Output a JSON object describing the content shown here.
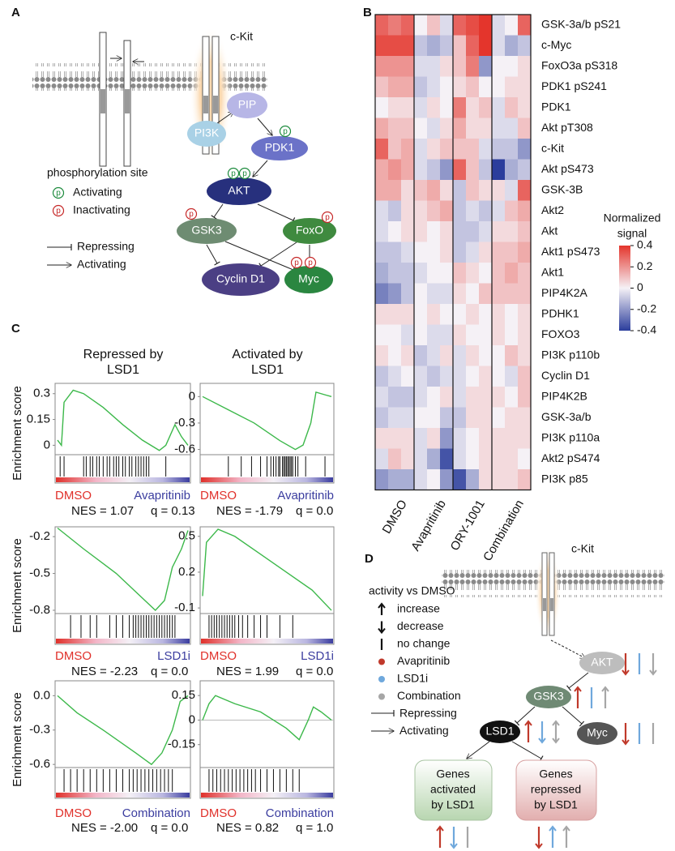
{
  "panel_a": {
    "label": "A",
    "receptor": "c-Kit",
    "nodes": {
      "pip": "PIP",
      "pi3k": "PI3K",
      "pdk1": "PDK1",
      "akt": "AKT",
      "gsk3": "GSK3",
      "foxo": "FoxO",
      "cyclin_d1": "Cyclin D1",
      "myc": "Myc"
    },
    "phospho_symbol": "p",
    "legend": {
      "title": "phosphorylation site",
      "activating_site": "Activating",
      "inactivating_site": "Inactivating",
      "repressing": "Repressing",
      "activating": "Activating"
    }
  },
  "panel_b": {
    "label": "B"
  },
  "panel_c": {
    "label": "C",
    "column_titles": [
      [
        "Repressed by",
        "LSD1"
      ],
      [
        "Activated by",
        "LSD1"
      ]
    ]
  },
  "panel_d": {
    "label": "D",
    "receptor": "c-Kit",
    "legend_title": "activity vs DMSO",
    "legend": [
      "increase",
      "decrease",
      "no change",
      "Avapritinib",
      "LSD1i",
      "Combination",
      "Repressing",
      "Activating"
    ],
    "treatment_colors": [
      "#c0392b",
      "#6fa8dc",
      "#a6a6a6"
    ],
    "nodes": {
      "akt": "AKT",
      "gsk3": "GSK3",
      "lsd1": "LSD1",
      "myc": "Myc"
    },
    "targets": [
      [
        "Genes",
        "activated",
        "by LSD1"
      ],
      [
        "Genes",
        "repressed",
        "by LSD1"
      ]
    ]
  },
  "chart_data": [
    {
      "type": "heatmap",
      "groups": [
        "DMSO",
        "Avapritinib",
        "ORY-1001",
        "Combination"
      ],
      "rows": [
        "GSK-3a/b pS21",
        "c-Myc",
        "FoxO3a pS318",
        "PDK1 pS241",
        "PDK1",
        "Akt pT308",
        "c-Kit",
        "Akt pS473",
        "GSK-3B",
        "Akt2",
        "Akt",
        "Akt1 pS473",
        "Akt1",
        "PIP4K2A",
        "PDHK1",
        "FOXO3",
        "PI3K p110b",
        "Cyclin D1",
        "PIP4K2B",
        "GSK-3a/b",
        "PI3K p110a",
        "Akt2 pS474",
        "PI3K p85"
      ],
      "values": [
        [
          [
            0.3,
            0.25,
            0.3
          ],
          [
            0,
            0.1,
            -0.05
          ],
          [
            0.3,
            0.35,
            0.4
          ],
          [
            -0.05,
            0,
            0.3
          ]
        ],
        [
          [
            0.35,
            0.35,
            0.35
          ],
          [
            -0.1,
            -0.15,
            -0.1
          ],
          [
            0.1,
            0.3,
            0.4
          ],
          [
            -0.05,
            -0.15,
            -0.1
          ]
        ],
        [
          [
            0.2,
            0.2,
            0.2
          ],
          [
            -0.05,
            -0.05,
            0.05
          ],
          [
            0.1,
            0.25,
            -0.2
          ],
          [
            0,
            0,
            0.05
          ]
        ],
        [
          [
            0.1,
            0.15,
            0.15
          ],
          [
            -0.1,
            -0.05,
            0
          ],
          [
            0.05,
            0.1,
            0
          ],
          [
            0,
            0.05,
            0.05
          ]
        ],
        [
          [
            0,
            0.05,
            0.05
          ],
          [
            -0.05,
            0.05,
            0
          ],
          [
            0.25,
            0.05,
            0.1
          ],
          [
            -0.05,
            0.1,
            0.05
          ]
        ],
        [
          [
            0.15,
            0.1,
            0.1
          ],
          [
            0,
            -0.05,
            0.05
          ],
          [
            0.15,
            0.05,
            0.05
          ],
          [
            -0.05,
            -0.05,
            0.1
          ]
        ],
        [
          [
            0.3,
            0.1,
            0.15
          ],
          [
            -0.05,
            0.05,
            0.1
          ],
          [
            0.1,
            0.1,
            -0.05
          ],
          [
            -0.1,
            -0.1,
            -0.2
          ]
        ],
        [
          [
            0.15,
            0.2,
            0.15
          ],
          [
            -0.05,
            -0.1,
            -0.2
          ],
          [
            0.3,
            0.1,
            -0.1
          ],
          [
            -0.4,
            -0.15,
            -0.1
          ]
        ],
        [
          [
            0.15,
            0.15,
            0.05
          ],
          [
            0.1,
            0.15,
            0.05
          ],
          [
            -0.1,
            0.1,
            0.05
          ],
          [
            0.05,
            -0.05,
            0.3
          ]
        ],
        [
          [
            -0.05,
            -0.1,
            0.05
          ],
          [
            0.05,
            0.1,
            0.15
          ],
          [
            -0.1,
            -0.05,
            -0.1
          ],
          [
            -0.05,
            0.1,
            0.15
          ]
        ],
        [
          [
            -0.05,
            0,
            0.05
          ],
          [
            0.05,
            0,
            0.05
          ],
          [
            -0.1,
            -0.1,
            -0.05
          ],
          [
            0.05,
            0.05,
            0.1
          ]
        ],
        [
          [
            -0.1,
            -0.1,
            -0.05
          ],
          [
            0,
            0,
            0.05
          ],
          [
            -0.1,
            -0.05,
            0.05
          ],
          [
            0.1,
            0.1,
            0.15
          ]
        ],
        [
          [
            -0.15,
            -0.1,
            -0.1
          ],
          [
            -0.05,
            0,
            0
          ],
          [
            0.1,
            0.05,
            0
          ],
          [
            0.1,
            0.15,
            0.1
          ]
        ],
        [
          [
            -0.25,
            -0.2,
            -0.1
          ],
          [
            0,
            -0.05,
            -0.05
          ],
          [
            0.05,
            0,
            0.1
          ],
          [
            0.1,
            0.1,
            0.1
          ]
        ],
        [
          [
            0.05,
            0.05,
            0.05
          ],
          [
            0,
            0.05,
            0
          ],
          [
            0,
            0.05,
            0
          ],
          [
            0.05,
            0,
            0.05
          ]
        ],
        [
          [
            0,
            0,
            -0.05
          ],
          [
            0,
            -0.05,
            -0.05
          ],
          [
            0.05,
            0,
            0
          ],
          [
            0.05,
            0,
            0.05
          ]
        ],
        [
          [
            0.05,
            0,
            0.05
          ],
          [
            -0.1,
            -0.05,
            0.05
          ],
          [
            -0.05,
            0.05,
            0
          ],
          [
            0,
            0.1,
            0.05
          ]
        ],
        [
          [
            -0.1,
            -0.05,
            0
          ],
          [
            -0.05,
            -0.1,
            -0.05
          ],
          [
            -0.05,
            0,
            0.05
          ],
          [
            0,
            -0.05,
            0.1
          ]
        ],
        [
          [
            -0.05,
            -0.1,
            -0.1
          ],
          [
            -0.05,
            0,
            0.05
          ],
          [
            -0.05,
            0.05,
            0.05
          ],
          [
            0.05,
            0,
            0.1
          ]
        ],
        [
          [
            -0.1,
            -0.05,
            -0.05
          ],
          [
            0,
            0,
            -0.1
          ],
          [
            -0.1,
            0.05,
            0.05
          ],
          [
            0,
            0.05,
            0.05
          ]
        ],
        [
          [
            0.05,
            0.05,
            0.05
          ],
          [
            -0.05,
            0.05,
            -0.2
          ],
          [
            -0.05,
            0,
            0.05
          ],
          [
            0.05,
            0.05,
            0.05
          ]
        ],
        [
          [
            -0.05,
            0.1,
            0.05
          ],
          [
            -0.05,
            -0.15,
            -0.35
          ],
          [
            -0.05,
            0,
            0.05
          ],
          [
            0.05,
            0.05,
            0
          ]
        ],
        [
          [
            -0.2,
            -0.15,
            -0.15
          ],
          [
            -0.05,
            0,
            -0.2
          ],
          [
            -0.35,
            -0.15,
            0.05
          ],
          [
            0.05,
            0.05,
            0.1
          ]
        ]
      ],
      "colors": [
        "#2b3d9c",
        "#f5f1f6",
        "#e4352c"
      ],
      "clim": [
        -0.4,
        0.4
      ],
      "colorbar_title": [
        "Normalized",
        "signal"
      ],
      "colorbar_ticks": [
        0.4,
        0.2,
        0,
        -0.2,
        -0.4
      ]
    },
    {
      "type": "gsea",
      "ylabel": "Enrichment score",
      "color": "#3cb84a",
      "labels": [
        "DMSO",
        "Avapritinib"
      ],
      "nes": "NES = 1.07",
      "q": "q = 0.13",
      "xlim": [
        0,
        100
      ],
      "ylim": [
        -0.05,
        0.36
      ],
      "yticks": [
        0.3,
        0.15,
        0
      ],
      "x": [
        0,
        3,
        5,
        12,
        20,
        35,
        50,
        65,
        78,
        83,
        90,
        95,
        100
      ],
      "y": [
        0.03,
        0,
        0.25,
        0.32,
        0.3,
        0.22,
        0.12,
        0.03,
        -0.03,
        0,
        0.12,
        0.05,
        0
      ],
      "hits": [
        2,
        5,
        20,
        22,
        25,
        27,
        30,
        32,
        35,
        38,
        40,
        43,
        45,
        47,
        50,
        52,
        55,
        57,
        60,
        62,
        64,
        66,
        68,
        70,
        83
      ]
    },
    {
      "type": "gsea",
      "color": "#3cb84a",
      "labels": [
        "DMSO",
        "Avapritinib"
      ],
      "nes": "NES = -1.79",
      "q": "q = 0.0",
      "xlim": [
        0,
        100
      ],
      "ylim": [
        -0.65,
        0.15
      ],
      "yticks": [
        0,
        -0.3,
        -0.6
      ],
      "x": [
        0,
        20,
        40,
        60,
        72,
        78,
        84,
        88,
        95,
        100
      ],
      "y": [
        0,
        -0.15,
        -0.3,
        -0.5,
        -0.6,
        -0.55,
        -0.3,
        0.05,
        0.02,
        0
      ],
      "hits": [
        20,
        30,
        38,
        45,
        50,
        53,
        55,
        57,
        59,
        60,
        62,
        63,
        64,
        65,
        66,
        67,
        68,
        69,
        70,
        72,
        74,
        80,
        95
      ]
    },
    {
      "type": "gsea",
      "ylabel": "Enrichment score",
      "color": "#3cb84a",
      "labels": [
        "DMSO",
        "LSD1i"
      ],
      "nes": "NES = -2.23",
      "q": "q = 0.0",
      "xlim": [
        0,
        100
      ],
      "ylim": [
        -0.82,
        -0.12
      ],
      "yticks": [
        -0.2,
        -0.5,
        -0.8
      ],
      "x": [
        0,
        20,
        45,
        65,
        75,
        82,
        88,
        95,
        100
      ],
      "y": [
        -0.13,
        -0.3,
        -0.5,
        -0.7,
        -0.8,
        -0.72,
        -0.45,
        -0.3,
        -0.15
      ],
      "hits": [
        10,
        18,
        25,
        30,
        40,
        45,
        50,
        55,
        58,
        60,
        62,
        64,
        66,
        68,
        70,
        72,
        74,
        76,
        78,
        80,
        82,
        84,
        86,
        88,
        90
      ]
    },
    {
      "type": "gsea",
      "color": "#3cb84a",
      "labels": [
        "DMSO",
        "LSD1i"
      ],
      "nes": "NES = 1.99",
      "q": "q = 0.0",
      "xlim": [
        0,
        100
      ],
      "ylim": [
        -0.14,
        0.58
      ],
      "yticks": [
        0.5,
        0.2,
        -0.1
      ],
      "x": [
        0,
        3,
        12,
        25,
        45,
        65,
        85,
        100
      ],
      "y": [
        0,
        0.45,
        0.56,
        0.5,
        0.35,
        0.2,
        0.05,
        -0.12
      ],
      "hits": [
        5,
        7,
        9,
        11,
        13,
        15,
        17,
        19,
        21,
        23,
        25,
        28,
        31,
        35,
        40,
        45,
        50,
        60,
        70
      ]
    },
    {
      "type": "gsea",
      "ylabel": "Enrichment score",
      "color": "#3cb84a",
      "labels": [
        "DMSO",
        "Combination"
      ],
      "nes": "NES = -2.00",
      "q": "q = 0.0",
      "xlim": [
        0,
        100
      ],
      "ylim": [
        -0.62,
        0.13
      ],
      "yticks": [
        {
          "value": 0,
          "label": "0.0"
        },
        -0.3,
        -0.6
      ],
      "x": [
        0,
        15,
        35,
        60,
        72,
        80,
        88,
        94,
        100
      ],
      "y": [
        0,
        -0.15,
        -0.3,
        -0.5,
        -0.6,
        -0.5,
        -0.3,
        -0.05,
        0
      ],
      "hits": [
        5,
        10,
        15,
        20,
        25,
        30,
        35,
        40,
        45,
        50,
        55,
        58,
        61,
        64,
        67,
        70,
        73,
        76,
        79,
        82,
        85,
        88
      ]
    },
    {
      "type": "gsea",
      "color": "#3cb84a",
      "labels": [
        "DMSO",
        "Combination"
      ],
      "nes": "NES = 0.82",
      "q": "q = 1.0",
      "zero_line": true,
      "xlim": [
        0,
        100
      ],
      "ylim": [
        -0.285,
        0.24
      ],
      "yticks": [
        0.15,
        0,
        -0.15
      ],
      "x": [
        0,
        5,
        10,
        25,
        45,
        65,
        75,
        82,
        86,
        92,
        100
      ],
      "y": [
        0,
        0.1,
        0.15,
        0.1,
        0.05,
        -0.05,
        -0.12,
        0,
        0.08,
        0.05,
        0
      ],
      "hits": [
        5,
        8,
        11,
        14,
        17,
        20,
        23,
        26,
        29,
        32,
        35,
        38,
        41,
        45,
        50,
        55,
        60,
        65,
        70,
        75
      ]
    }
  ]
}
